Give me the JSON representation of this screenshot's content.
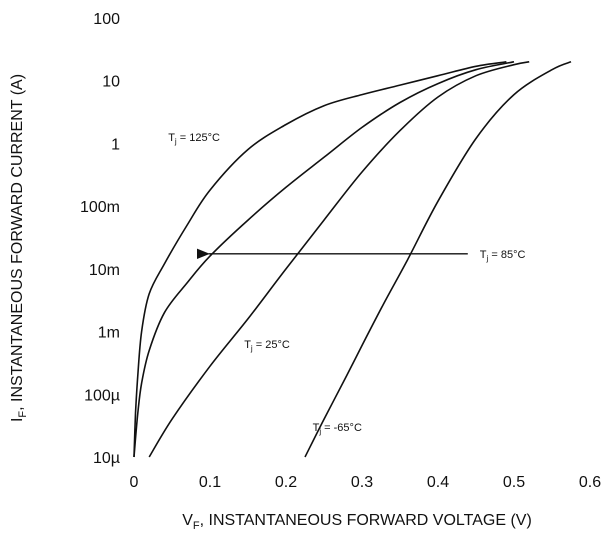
{
  "chart_data": {
    "type": "line",
    "title": "",
    "xlabel": {
      "main": "V",
      "sub": "F",
      "rest": ", INSTANTANEOUS FORWARD VOLTAGE (V)"
    },
    "ylabel": {
      "main": "I",
      "sub": "F",
      "rest": ", INSTANTANEOUS FORWARD CURRENT (A)"
    },
    "xlim": [
      0,
      0.6
    ],
    "ylim": [
      1e-05,
      100
    ],
    "yscale": "log",
    "grid": false,
    "xticks": [
      {
        "value": 0,
        "label": "0"
      },
      {
        "value": 0.1,
        "label": "0.1"
      },
      {
        "value": 0.2,
        "label": "0.2"
      },
      {
        "value": 0.3,
        "label": "0.3"
      },
      {
        "value": 0.4,
        "label": "0.4"
      },
      {
        "value": 0.5,
        "label": "0.5"
      },
      {
        "value": 0.6,
        "label": "0.6"
      }
    ],
    "yticks": [
      {
        "value": 100,
        "label": "100"
      },
      {
        "value": 10,
        "label": "10"
      },
      {
        "value": 1,
        "label": "1"
      },
      {
        "value": 0.1,
        "label": "100m"
      },
      {
        "value": 0.01,
        "label": "10m"
      },
      {
        "value": 0.001,
        "label": "1m"
      },
      {
        "value": 0.0001,
        "label": "100µ"
      },
      {
        "value": 1e-05,
        "label": "10µ"
      }
    ],
    "series": [
      {
        "name": "TJ = 125°C",
        "x": [
          0.0,
          0.002,
          0.005,
          0.01,
          0.02,
          0.04,
          0.07,
          0.1,
          0.15,
          0.2,
          0.25,
          0.3,
          0.35,
          0.4,
          0.45,
          0.49
        ],
        "y": [
          1e-05,
          5e-05,
          0.0002,
          0.001,
          0.004,
          0.012,
          0.05,
          0.18,
          0.8,
          2.0,
          4.0,
          6.0,
          8.5,
          12,
          17,
          20
        ]
      },
      {
        "name": "TJ = 85°C",
        "x": [
          0.0,
          0.005,
          0.01,
          0.02,
          0.04,
          0.07,
          0.1,
          0.15,
          0.2,
          0.25,
          0.3,
          0.35,
          0.4,
          0.45,
          0.5
        ],
        "y": [
          1e-05,
          5e-05,
          0.00015,
          0.0005,
          0.002,
          0.006,
          0.016,
          0.06,
          0.2,
          0.6,
          1.8,
          4.5,
          9,
          15,
          20
        ]
      },
      {
        "name": "TJ = 25°C",
        "x": [
          0.02,
          0.05,
          0.1,
          0.15,
          0.2,
          0.25,
          0.3,
          0.35,
          0.4,
          0.45,
          0.5,
          0.52
        ],
        "y": [
          1e-05,
          4e-05,
          0.00028,
          0.0016,
          0.01,
          0.06,
          0.35,
          1.6,
          5.5,
          12,
          18,
          20
        ]
      },
      {
        "name": "TJ = -65°C",
        "x": [
          0.225,
          0.25,
          0.28,
          0.3,
          0.33,
          0.36,
          0.4,
          0.45,
          0.5,
          0.55,
          0.575
        ],
        "y": [
          1e-05,
          4e-05,
          0.0002,
          0.0006,
          0.003,
          0.014,
          0.12,
          1.2,
          6,
          15,
          20
        ]
      }
    ],
    "annotations": [
      {
        "main": "T",
        "sub": "j",
        "rest": " = 125°C",
        "x": 0.045,
        "y": 1.1
      },
      {
        "main": "T",
        "sub": "j",
        "rest": " = 85°C",
        "x": 0.455,
        "y": 0.015,
        "arrow_to": {
          "x": 0.085,
          "y": 0.012
        }
      },
      {
        "main": "T",
        "sub": "j",
        "rest": " = 25°C",
        "x": 0.145,
        "y": 0.00055
      },
      {
        "main": "T",
        "sub": "j",
        "rest": " = -65°C",
        "x": 0.235,
        "y": 2.6e-05
      }
    ]
  }
}
